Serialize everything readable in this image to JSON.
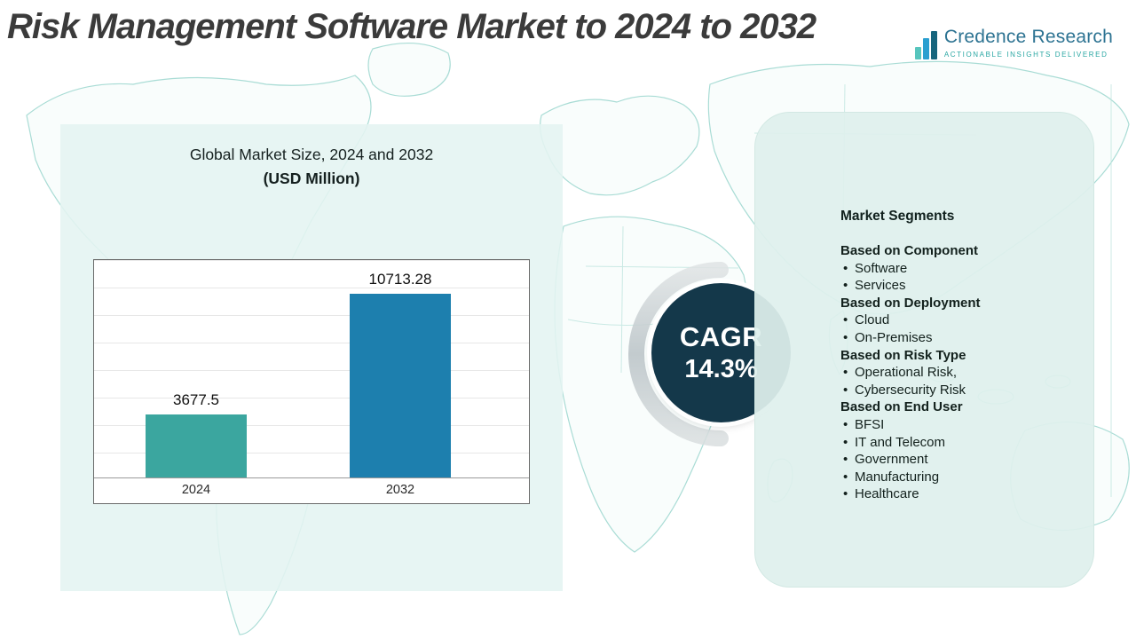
{
  "title": "Risk Management Software Market to 2024 to 2032",
  "logo": {
    "name": "Credence Research",
    "tagline": "Actionable Insights Delivered"
  },
  "chart_panel": {
    "title_line1": "Global Market Size, 2024 and 2032",
    "title_line2": "(USD Million)"
  },
  "chart_data": {
    "type": "bar",
    "title": "Global Market Size, 2024 and 2032 (USD Million)",
    "categories": [
      "2024",
      "2032"
    ],
    "values": [
      3677.5,
      10713.28
    ],
    "value_labels": [
      "3677.5",
      "10713.28"
    ],
    "xlabel": "",
    "ylabel": "",
    "ylim": [
      0,
      12000
    ],
    "grid": true,
    "legend": false,
    "bar_colors": [
      "#3ba69f",
      "#1d7fae"
    ]
  },
  "cagr": {
    "label": "CAGR",
    "value": "14.3%"
  },
  "segments": {
    "heading": "Market Segments",
    "groups": [
      {
        "heading": "Based on Component",
        "items": [
          "Software",
          "Services"
        ]
      },
      {
        "heading": "Based on Deployment",
        "items": [
          "Cloud",
          "On-Premises"
        ]
      },
      {
        "heading": "Based on Risk Type",
        "items": [
          "Operational Risk,",
          "Cybersecurity Risk"
        ]
      },
      {
        "heading": "Based on End User",
        "items": [
          "BFSI",
          "IT and Telecom",
          "Government",
          "Manufacturing",
          "Healthcare"
        ]
      }
    ]
  },
  "colors": {
    "map_line": "#a9dcd5",
    "cagr_circle": "#14384a",
    "panel_bg": "#e4f3f0",
    "accent_teal": "#2aa7a3"
  }
}
